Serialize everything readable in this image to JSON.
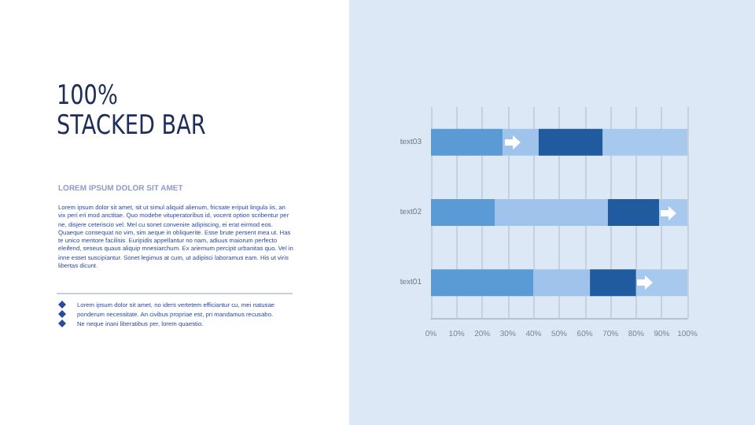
{
  "chart_data": {
    "type": "bar",
    "orientation": "horizontal",
    "stacked": true,
    "title": "100% STACKED BAR",
    "subtitle": "LOREM IPSUM DOLOR SIT AMET",
    "annotations": [
      "Lorem ipsum dolor sit amet, sit ut simul aliquid alienum, fricsate eripuit lingula iis, an vix peri eri mod anctitae. Quo modebe vituperatoribus id, vocent option scribentur per ne, disjere ceteriscio vel. Mel cu sonet convenire adipiscing, ei erat eirmod eos. Quaeque consequat no vim, sim aeque in obliquerite. Esse brute persent mea ut. Has te unico mentore facilisis. Euripidis appellantur no nam, adiuus maiorum perfecto eleifend, seseus quaus aliquip mnesiarchum. Ex ariemum percipit urbanitas quo. Vel in inne esset suscipiantur. Sonet legimus at cum, ut adipisci laboramus eam. His ut viris libertas dicunt.",
      "Lorem ipsum dolor sit amet, no iders vertetem efficiantur cu, mei natusae",
      "ponderum necessitate. An civibus propriae est, pri mandamus recusabo.",
      "Ne neque inani liberatibus per, lorem quaestio."
    ],
    "categories": [
      "text03",
      "text02",
      "text01"
    ],
    "series": [
      {
        "color": "#5b9bd5",
        "values": [
          28,
          25,
          40
        ]
      },
      {
        "color": "#9fc3ea",
        "values": [
          14,
          44,
          22
        ]
      },
      {
        "color": "#1f5b9e",
        "values": [
          25,
          20,
          18
        ]
      },
      {
        "color": "#a8c9ee",
        "values": [
          33,
          11,
          20
        ]
      }
    ],
    "xlim": [
      0,
      100
    ],
    "xticks": [
      {
        "value": 0,
        "label": "0%"
      },
      {
        "value": 10,
        "label": "10%"
      },
      {
        "value": 20,
        "label": "20%"
      },
      {
        "value": 30,
        "label": "30%"
      },
      {
        "value": 40,
        "label": "40%"
      },
      {
        "value": 50,
        "label": "50%"
      },
      {
        "value": 60,
        "label": "60%"
      },
      {
        "value": 70,
        "label": "70%"
      },
      {
        "value": 80,
        "label": "80%"
      },
      {
        "value": 90,
        "label": "90%"
      },
      {
        "value": 100,
        "label": "100%"
      }
    ],
    "grid": "x"
  }
}
